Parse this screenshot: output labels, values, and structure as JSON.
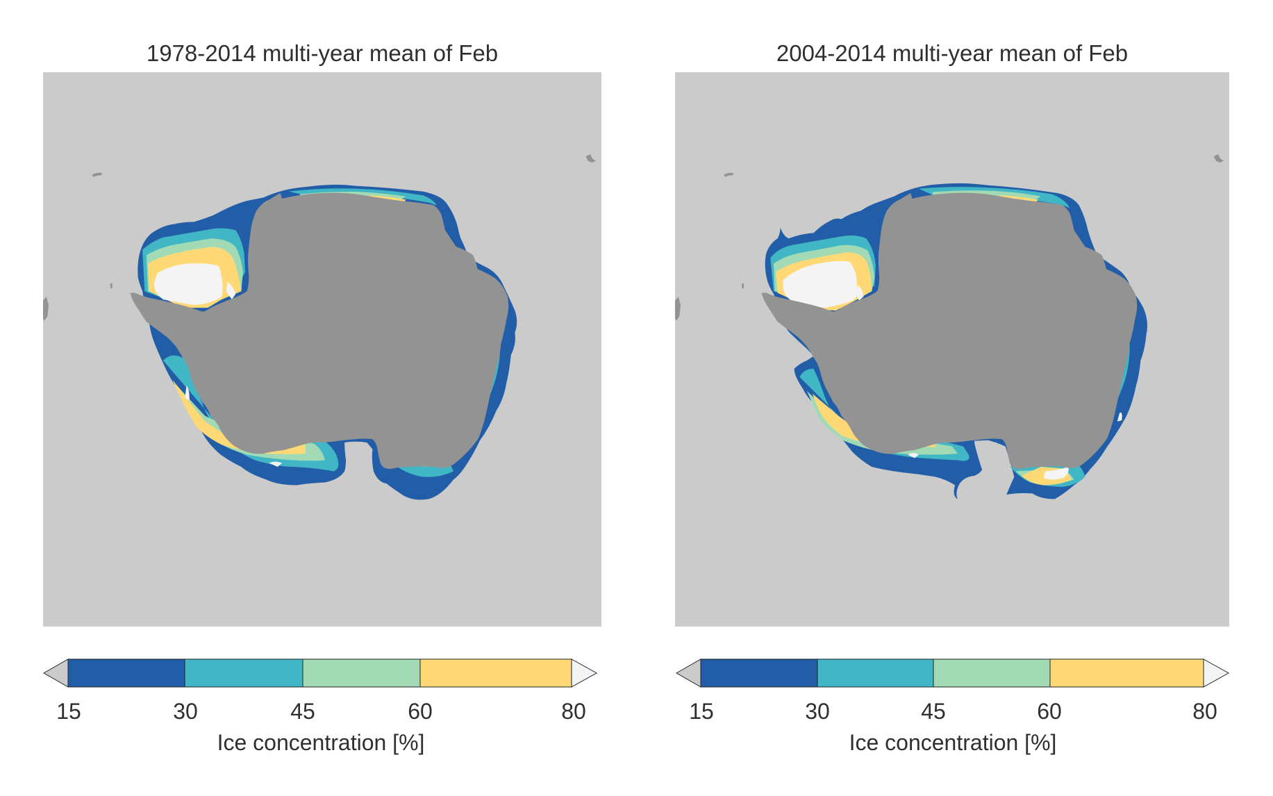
{
  "figure": {
    "panels": [
      {
        "title": "1978-2014 multi-year mean of Feb",
        "period": "1978-2014",
        "month": "Feb",
        "colorbar": {
          "label": "Ice concentration [%]",
          "ticks": [
            "15",
            "30",
            "45",
            "60",
            "80"
          ]
        }
      },
      {
        "title": "2004-2014 multi-year mean of Feb",
        "period": "2004-2014",
        "month": "Feb",
        "colorbar": {
          "label": "Ice concentration [%]",
          "ticks": [
            "15",
            "30",
            "45",
            "60",
            "80"
          ]
        }
      }
    ]
  },
  "colors": {
    "ocean": "#cbcbcb",
    "land": "#939393",
    "under_15": "#cbcbcb",
    "c15_30": "#225ea8",
    "c30_45": "#41b6c4",
    "c45_60": "#a1dab4",
    "c60_80": "#fed976",
    "over_80": "#f4f4f4"
  },
  "chart_data": [
    {
      "type": "heatmap",
      "title": "1978-2014 multi-year mean of Feb",
      "projection": "south-polar stereographic",
      "variable": "Ice concentration [%]",
      "levels": [
        15,
        30,
        45,
        60,
        80
      ],
      "bins": [
        {
          "range": "<15",
          "color": "#cbcbcb"
        },
        {
          "range": "15-30",
          "color": "#225ea8"
        },
        {
          "range": "30-45",
          "color": "#41b6c4"
        },
        {
          "range": "45-60",
          "color": "#a1dab4"
        },
        {
          "range": "60-80",
          "color": "#fed976"
        },
        {
          "range": ">80",
          "color": "#f4f4f4"
        }
      ],
      "colorbar": {
        "label": "Ice concentration [%]",
        "ticks": [
          15,
          30,
          45,
          60,
          80
        ],
        "extend": "both",
        "placement": "bottom"
      }
    },
    {
      "type": "heatmap",
      "title": "2004-2014 multi-year mean of Feb",
      "projection": "south-polar stereographic",
      "variable": "Ice concentration [%]",
      "levels": [
        15,
        30,
        45,
        60,
        80
      ],
      "bins": [
        {
          "range": "<15",
          "color": "#cbcbcb"
        },
        {
          "range": "15-30",
          "color": "#225ea8"
        },
        {
          "range": "30-45",
          "color": "#41b6c4"
        },
        {
          "range": "45-60",
          "color": "#a1dab4"
        },
        {
          "range": "60-80",
          "color": "#fed976"
        },
        {
          "range": ">80",
          "color": "#f4f4f4"
        }
      ],
      "colorbar": {
        "label": "Ice concentration [%]",
        "ticks": [
          15,
          30,
          45,
          60,
          80
        ],
        "extend": "both",
        "placement": "bottom"
      }
    }
  ]
}
